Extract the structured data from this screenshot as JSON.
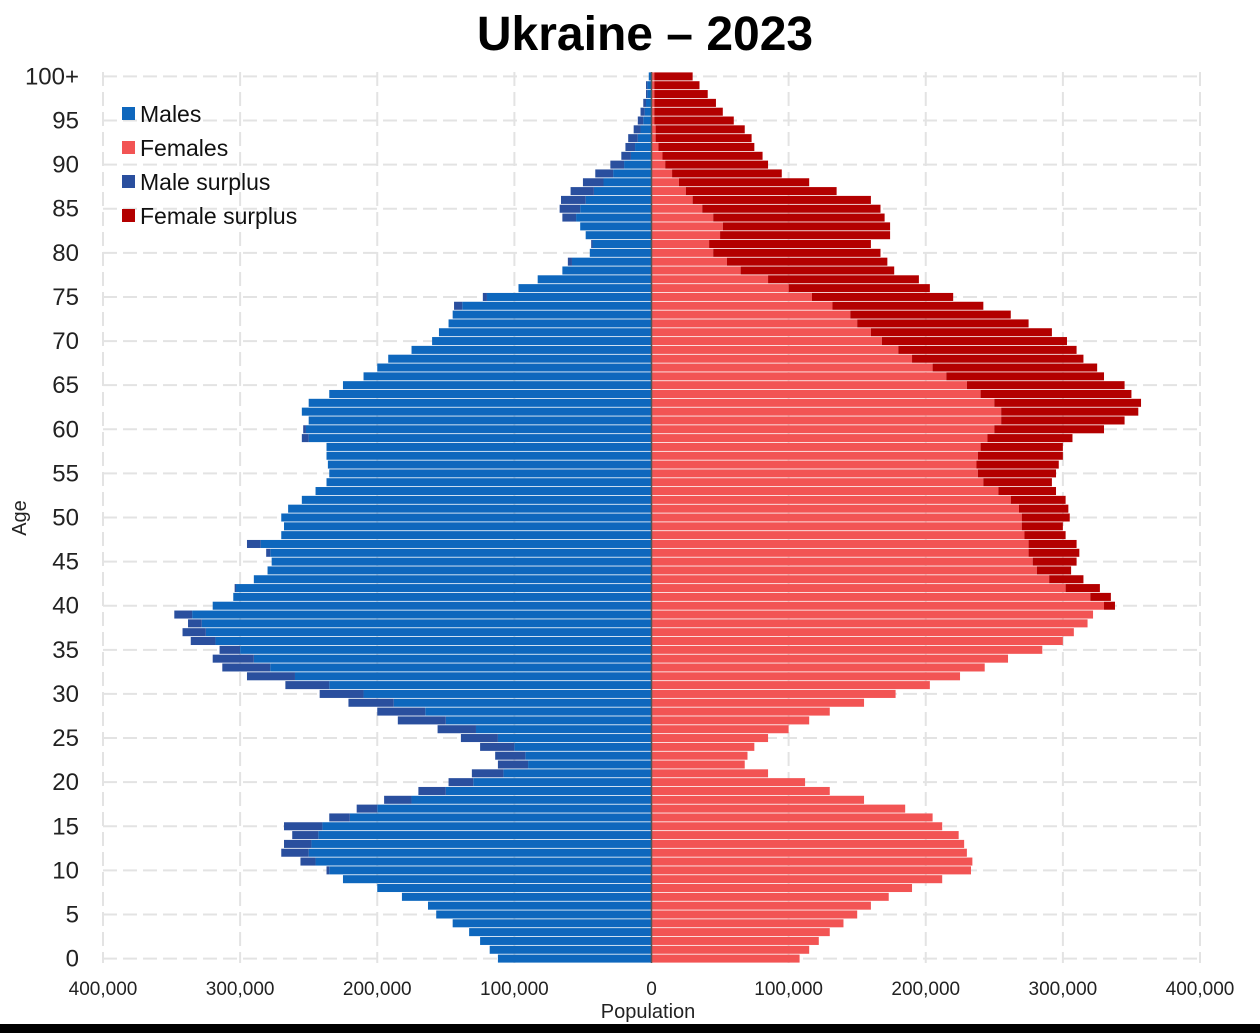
{
  "chart_data": {
    "type": "bar",
    "orientation": "horizontal-population-pyramid",
    "title": "Ukraine – 2023",
    "xlabel": "Population",
    "ylabel": "Age",
    "xlim": [
      -400000,
      400000
    ],
    "ylim": [
      0,
      100
    ],
    "x_ticks": [
      -400000,
      -300000,
      -200000,
      -100000,
      0,
      100000,
      200000,
      300000,
      400000
    ],
    "x_tick_labels": [
      "400,000",
      "300,000",
      "200,000",
      "100,000",
      "0",
      "100,000",
      "200,000",
      "300,000",
      "400,000"
    ],
    "y_ticks": [
      0,
      5,
      10,
      15,
      20,
      25,
      30,
      35,
      40,
      45,
      50,
      55,
      60,
      65,
      70,
      75,
      80,
      85,
      90,
      95,
      100
    ],
    "y_tick_labels": [
      "0",
      "5",
      "10",
      "15",
      "20",
      "25",
      "30",
      "35",
      "40",
      "45",
      "50",
      "55",
      "60",
      "65",
      "70",
      "75",
      "80",
      "85",
      "90",
      "95",
      "100+"
    ],
    "grid": true,
    "legend_position": "top-left",
    "legend": [
      "Males",
      "Females",
      "Male surplus",
      "Female surplus"
    ],
    "colors": {
      "males": "#0e67bd",
      "females": "#f25454",
      "male_surplus": "#2a4f9e",
      "female_surplus": "#b30000"
    },
    "ages": [
      0,
      1,
      2,
      3,
      4,
      5,
      6,
      7,
      8,
      9,
      10,
      11,
      12,
      13,
      14,
      15,
      16,
      17,
      18,
      19,
      20,
      21,
      22,
      23,
      24,
      25,
      26,
      27,
      28,
      29,
      30,
      31,
      32,
      33,
      34,
      35,
      36,
      37,
      38,
      39,
      40,
      41,
      42,
      43,
      44,
      45,
      46,
      47,
      48,
      49,
      50,
      51,
      52,
      53,
      54,
      55,
      56,
      57,
      58,
      59,
      60,
      61,
      62,
      63,
      64,
      65,
      66,
      67,
      68,
      69,
      70,
      71,
      72,
      73,
      74,
      75,
      76,
      77,
      78,
      79,
      80,
      81,
      82,
      83,
      84,
      85,
      86,
      87,
      88,
      89,
      90,
      91,
      92,
      93,
      94,
      95,
      96,
      97,
      98,
      99,
      100
    ],
    "series": [
      {
        "name": "Males",
        "values": [
          112000,
          118000,
          125000,
          133000,
          145000,
          157000,
          163000,
          182000,
          200000,
          225000,
          235000,
          245000,
          250000,
          248000,
          243000,
          240000,
          220000,
          200000,
          175000,
          150000,
          130000,
          108000,
          90000,
          92000,
          100000,
          112000,
          128000,
          150000,
          165000,
          188000,
          210000,
          235000,
          260000,
          278000,
          290000,
          300000,
          318000,
          325000,
          328000,
          335000,
          320000,
          305000,
          303000,
          290000,
          280000,
          277000,
          278000,
          285000,
          270000,
          268000,
          270000,
          265000,
          255000,
          245000,
          237000,
          235000,
          236000,
          237000,
          237000,
          250000,
          252000,
          250000,
          255000,
          250000,
          235000,
          225000,
          210000,
          200000,
          192000,
          175000,
          160000,
          155000,
          148000,
          145000,
          138000,
          120000,
          97000,
          83000,
          65000,
          58000,
          45000,
          43000,
          48000,
          52000,
          55000,
          52000,
          48000,
          42000,
          35000,
          28000,
          20000,
          15000,
          12000,
          10000,
          8000,
          6000,
          5000,
          4000,
          3000,
          3000,
          2000
        ]
      },
      {
        "name": "Females",
        "values": [
          108000,
          115000,
          122000,
          130000,
          140000,
          150000,
          160000,
          173000,
          190000,
          212000,
          233000,
          234000,
          230000,
          228000,
          224000,
          212000,
          205000,
          185000,
          155000,
          130000,
          112000,
          85000,
          68000,
          70000,
          75000,
          85000,
          100000,
          115000,
          130000,
          155000,
          178000,
          203000,
          225000,
          243000,
          260000,
          285000,
          300000,
          308000,
          318000,
          322000,
          330000,
          320000,
          302000,
          290000,
          281000,
          278000,
          275000,
          275000,
          272000,
          270000,
          270000,
          268000,
          262000,
          253000,
          242000,
          238000,
          237000,
          238000,
          240000,
          245000,
          250000,
          255000,
          255000,
          250000,
          240000,
          230000,
          215000,
          205000,
          190000,
          180000,
          168000,
          160000,
          150000,
          145000,
          132000,
          117000,
          100000,
          85000,
          65000,
          55000,
          45000,
          42000,
          50000,
          52000,
          45000,
          37000,
          30000,
          25000,
          20000,
          15000,
          10000,
          8000,
          5000,
          3000,
          3000,
          2000,
          2000,
          2000,
          2000,
          2000,
          2000
        ]
      },
      {
        "name": "Male surplus",
        "values": [
          0,
          0,
          0,
          0,
          0,
          0,
          0,
          0,
          0,
          0,
          2000,
          11000,
          20000,
          20000,
          19000,
          28000,
          15000,
          15000,
          20000,
          20000,
          18000,
          23000,
          22000,
          22000,
          25000,
          27000,
          28000,
          35000,
          35000,
          33000,
          32000,
          32000,
          35000,
          35000,
          30000,
          15000,
          18000,
          17000,
          10000,
          13000,
          0,
          0,
          1000,
          0,
          0,
          0,
          3000,
          10000,
          0,
          0,
          0,
          0,
          0,
          0,
          0,
          0,
          0,
          0,
          0,
          5000,
          2000,
          0,
          0,
          0,
          0,
          0,
          0,
          0,
          0,
          0,
          0,
          0,
          0,
          0,
          6000,
          3000,
          0,
          0,
          0,
          3000,
          0,
          1000,
          0,
          0,
          10000,
          15000,
          18000,
          17000,
          15000,
          13000,
          10000,
          7000,
          7000,
          7000,
          5000,
          4000,
          3000,
          2000,
          1000,
          1000,
          0
        ]
      },
      {
        "name": "Female surplus",
        "values": [
          0,
          0,
          0,
          0,
          0,
          0,
          0,
          0,
          0,
          0,
          0,
          0,
          0,
          0,
          0,
          0,
          0,
          0,
          0,
          0,
          0,
          0,
          0,
          0,
          0,
          0,
          0,
          0,
          0,
          0,
          0,
          0,
          0,
          0,
          0,
          0,
          0,
          0,
          0,
          0,
          8000,
          15000,
          25000,
          25000,
          25000,
          32000,
          37000,
          35000,
          30000,
          30000,
          35000,
          36000,
          40000,
          42000,
          50000,
          57000,
          60000,
          62000,
          60000,
          62000,
          80000,
          90000,
          100000,
          107000,
          110000,
          115000,
          115000,
          120000,
          125000,
          130000,
          135000,
          132000,
          125000,
          117000,
          110000,
          103000,
          103000,
          110000,
          112000,
          117000,
          122000,
          118000,
          124000,
          122000,
          125000,
          130000,
          130000,
          110000,
          95000,
          80000,
          75000,
          73000,
          70000,
          70000,
          65000,
          58000,
          50000,
          45000,
          39000,
          33000,
          28000
        ]
      }
    ]
  }
}
